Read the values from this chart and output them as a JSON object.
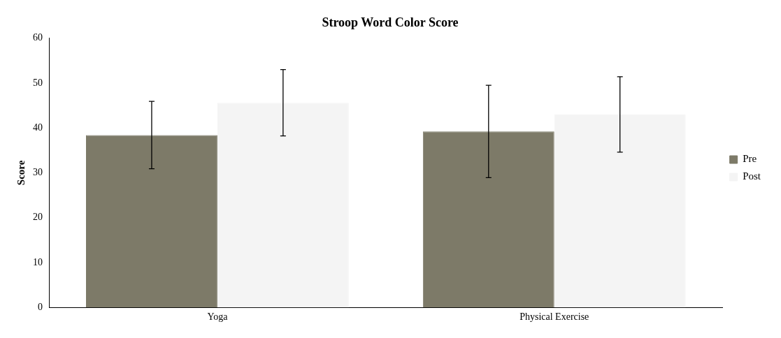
{
  "chart_data": {
    "type": "bar",
    "title": "Stroop Word Color Score",
    "ylabel": "Score",
    "categories": [
      "Yoga",
      "Physical Exercise"
    ],
    "series": [
      {
        "name": "Pre",
        "color": "#7d7a68",
        "values": [
          38.4,
          39.2
        ],
        "errors": [
          7.5,
          10.3
        ]
      },
      {
        "name": "Post",
        "color": "#f4f4f4",
        "values": [
          45.6,
          43.0
        ],
        "errors": [
          7.4,
          8.4
        ]
      }
    ],
    "ylim": [
      0,
      60
    ],
    "yticks": [
      0,
      10,
      20,
      30,
      40,
      50,
      60
    ],
    "grid": false,
    "legend": "right"
  }
}
